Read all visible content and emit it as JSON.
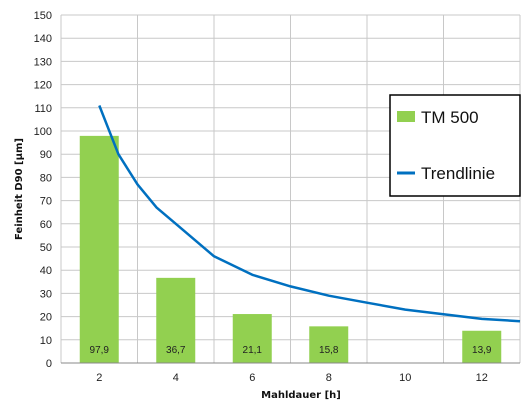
{
  "chart_data": {
    "type": "bar",
    "xlabel": "Mahldauer [h]",
    "ylabel": "Feinheit D90 [µm]",
    "ylim": [
      0,
      150
    ],
    "y_ticks": [
      0,
      10,
      20,
      30,
      40,
      50,
      60,
      70,
      80,
      90,
      100,
      110,
      120,
      130,
      140,
      150
    ],
    "x_ticks": [
      2,
      4,
      6,
      8,
      10,
      12
    ],
    "grid": true,
    "legend_position": "right",
    "series": [
      {
        "name": "TM 500",
        "type": "bar",
        "color": "#92d050",
        "x": [
          2,
          4,
          6,
          8,
          12
        ],
        "values": [
          97.9,
          36.7,
          21.1,
          15.8,
          13.9
        ],
        "labels": [
          "97,9",
          "36,7",
          "21,1",
          "15,8",
          "13,9"
        ]
      },
      {
        "name": "Trendlinie",
        "type": "line",
        "color": "#0070c0",
        "x": [
          2,
          2.5,
          3,
          3.5,
          4,
          5,
          6,
          7,
          8,
          9,
          10,
          11,
          12,
          13
        ],
        "values": [
          111,
          90,
          77,
          67,
          60,
          46,
          38,
          33,
          29,
          26,
          23,
          21,
          19,
          18
        ]
      }
    ]
  }
}
